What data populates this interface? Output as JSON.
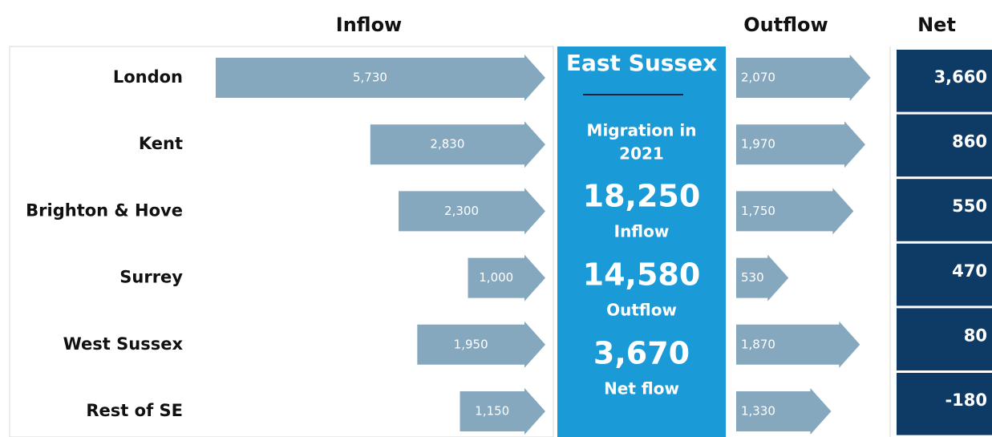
{
  "chart_data": {
    "type": "bar",
    "categories": [
      "London",
      "Kent",
      "Brighton & Hove",
      "Surrey",
      "West Sussex",
      "Rest of SE"
    ],
    "series": [
      {
        "name": "Inflow",
        "color": "#86a8bf",
        "values": [
          5730,
          2830,
          2300,
          1000,
          1950,
          1150
        ],
        "value_labels": [
          "5,730",
          "2,830",
          "2,300",
          "1,000",
          "1,950",
          "1,150"
        ]
      },
      {
        "name": "Outflow",
        "color": "#86a8bf",
        "values": [
          2070,
          1970,
          1750,
          530,
          1870,
          1330
        ],
        "value_labels": [
          "2,070",
          "1,970",
          "1,750",
          "530",
          "1,870",
          "1,330"
        ]
      },
      {
        "name": "Net",
        "color": "#0e3a66",
        "values": [
          3660,
          860,
          550,
          470,
          80,
          -180
        ],
        "value_labels": [
          "3,660",
          "860",
          "550",
          "470",
          "80",
          "-180"
        ]
      }
    ],
    "panel": {
      "color": "#1a9ad6",
      "title": "East Sussex",
      "subtitle_lines": [
        "Migration in",
        "2021"
      ],
      "stats": [
        {
          "number": "18,250",
          "caption": "Inflow"
        },
        {
          "number": "14,580",
          "caption": "Outflow"
        },
        {
          "number": "3,670",
          "caption": "Net flow"
        }
      ]
    }
  }
}
